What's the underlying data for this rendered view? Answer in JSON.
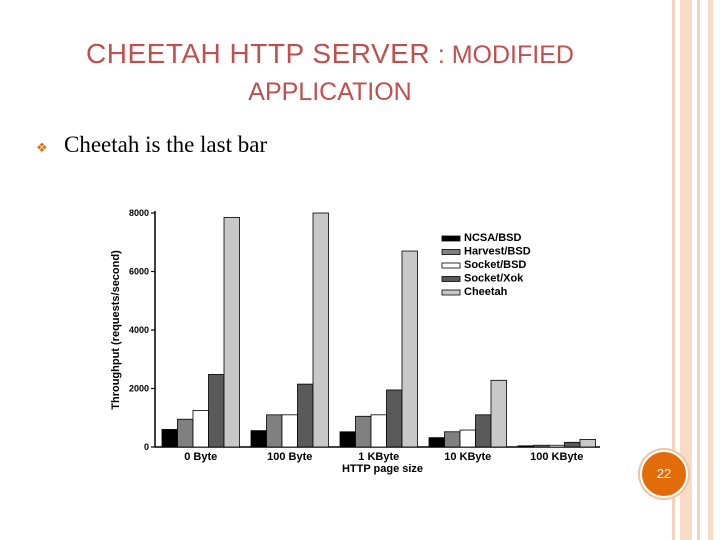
{
  "slide": {
    "title_main": "CHEETAH HTTP SERVER",
    "title_rest": ": MODIFIED",
    "title_line2": "APPLICATION",
    "bullet_text": "Cheetah is the last bar",
    "slide_number": "22",
    "colors": {
      "accent": "#c0504d",
      "orange": "#e36c0a",
      "stripe": "#f5d3bb"
    }
  },
  "chart_data": {
    "type": "bar",
    "xlabel": "HTTP page size",
    "ylabel": "Throughput (requests/second)",
    "ylim": [
      0,
      8000
    ],
    "yticks": [
      0,
      2000,
      4000,
      6000,
      8000
    ],
    "ytick_labels": [
      "0",
      "2000",
      "4000",
      "6000",
      "8000"
    ],
    "legend_position": "right",
    "categories": [
      "0 Byte",
      "100 Byte",
      "1 KByte",
      "10 KByte",
      "100 KByte"
    ],
    "series": [
      {
        "name": "NCSA/BSD",
        "color": "#000000",
        "values": [
          600,
          560,
          520,
          320,
          40
        ]
      },
      {
        "name": "Harvest/BSD",
        "color": "#808080",
        "values": [
          950,
          1100,
          1050,
          520,
          60
        ]
      },
      {
        "name": "Socket/BSD",
        "color": "#ffffff",
        "values": [
          1250,
          1100,
          1100,
          580,
          60
        ]
      },
      {
        "name": "Socket/Xok",
        "color": "#5a5a5a",
        "values": [
          2480,
          2150,
          1950,
          1100,
          160
        ]
      },
      {
        "name": "Cheetah",
        "color": "#c8c8c8",
        "values": [
          7850,
          8000,
          6700,
          2280,
          260
        ]
      }
    ]
  }
}
